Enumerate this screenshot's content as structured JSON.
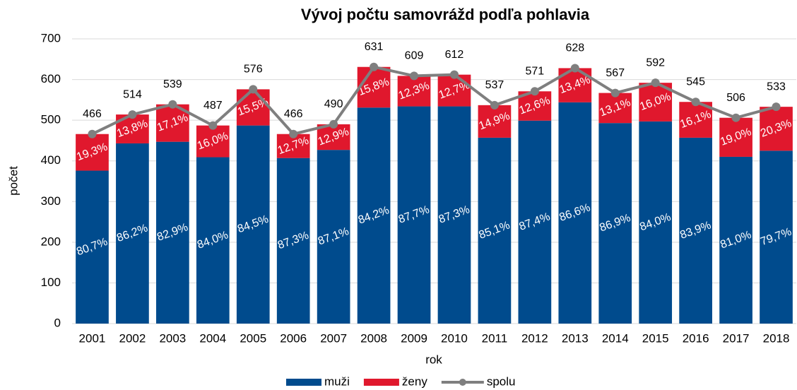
{
  "chart_data": {
    "type": "stacked_bar_line",
    "title": "Vývoj počtu samovrážd podľa pohlavia",
    "xlabel": "rok",
    "ylabel": "počet",
    "categories": [
      "2001",
      "2002",
      "2003",
      "2004",
      "2005",
      "2006",
      "2007",
      "2008",
      "2009",
      "2010",
      "2011",
      "2012",
      "2013",
      "2014",
      "2015",
      "2016",
      "2017",
      "2018"
    ],
    "series": [
      {
        "name": "muži",
        "color": "#004b8d",
        "kind": "bar",
        "values": [
          376,
          443,
          447,
          409,
          487,
          407,
          427,
          531,
          534,
          534,
          457,
          499,
          544,
          493,
          497,
          457,
          410,
          425
        ],
        "value_labels": [
          "80,7%",
          "86,2%",
          "82,9%",
          "84,0%",
          "84,5%",
          "87,3%",
          "87,1%",
          "84,2%",
          "87,7%",
          "87,3%",
          "85,1%",
          "87,4%",
          "86,6%",
          "86,9%",
          "84,0%",
          "83,9%",
          "81,0%",
          "79,7%"
        ]
      },
      {
        "name": "ženy",
        "color": "#e0182d",
        "kind": "bar",
        "values": [
          90,
          71,
          92,
          78,
          89,
          59,
          63,
          100,
          75,
          78,
          80,
          72,
          84,
          74,
          95,
          88,
          96,
          108
        ],
        "value_labels": [
          "19,3%",
          "13,8%",
          "17,1%",
          "16,0%",
          "15,5%",
          "12,7%",
          "12,9%",
          "15,8%",
          "12,3%",
          "12,7%",
          "14,9%",
          "12,6%",
          "13,4%",
          "13,1%",
          "16,0%",
          "16,1%",
          "19,0%",
          "20,3%"
        ]
      },
      {
        "name": "spolu",
        "color": "#7f7f7f",
        "kind": "line",
        "values": [
          466,
          514,
          539,
          487,
          576,
          466,
          490,
          631,
          609,
          612,
          537,
          571,
          628,
          567,
          592,
          545,
          506,
          533
        ]
      }
    ],
    "ylim": [
      0,
      700
    ],
    "yticks": [
      0,
      100,
      200,
      300,
      400,
      500,
      600,
      700
    ],
    "grid": true,
    "legend": "bottom"
  }
}
